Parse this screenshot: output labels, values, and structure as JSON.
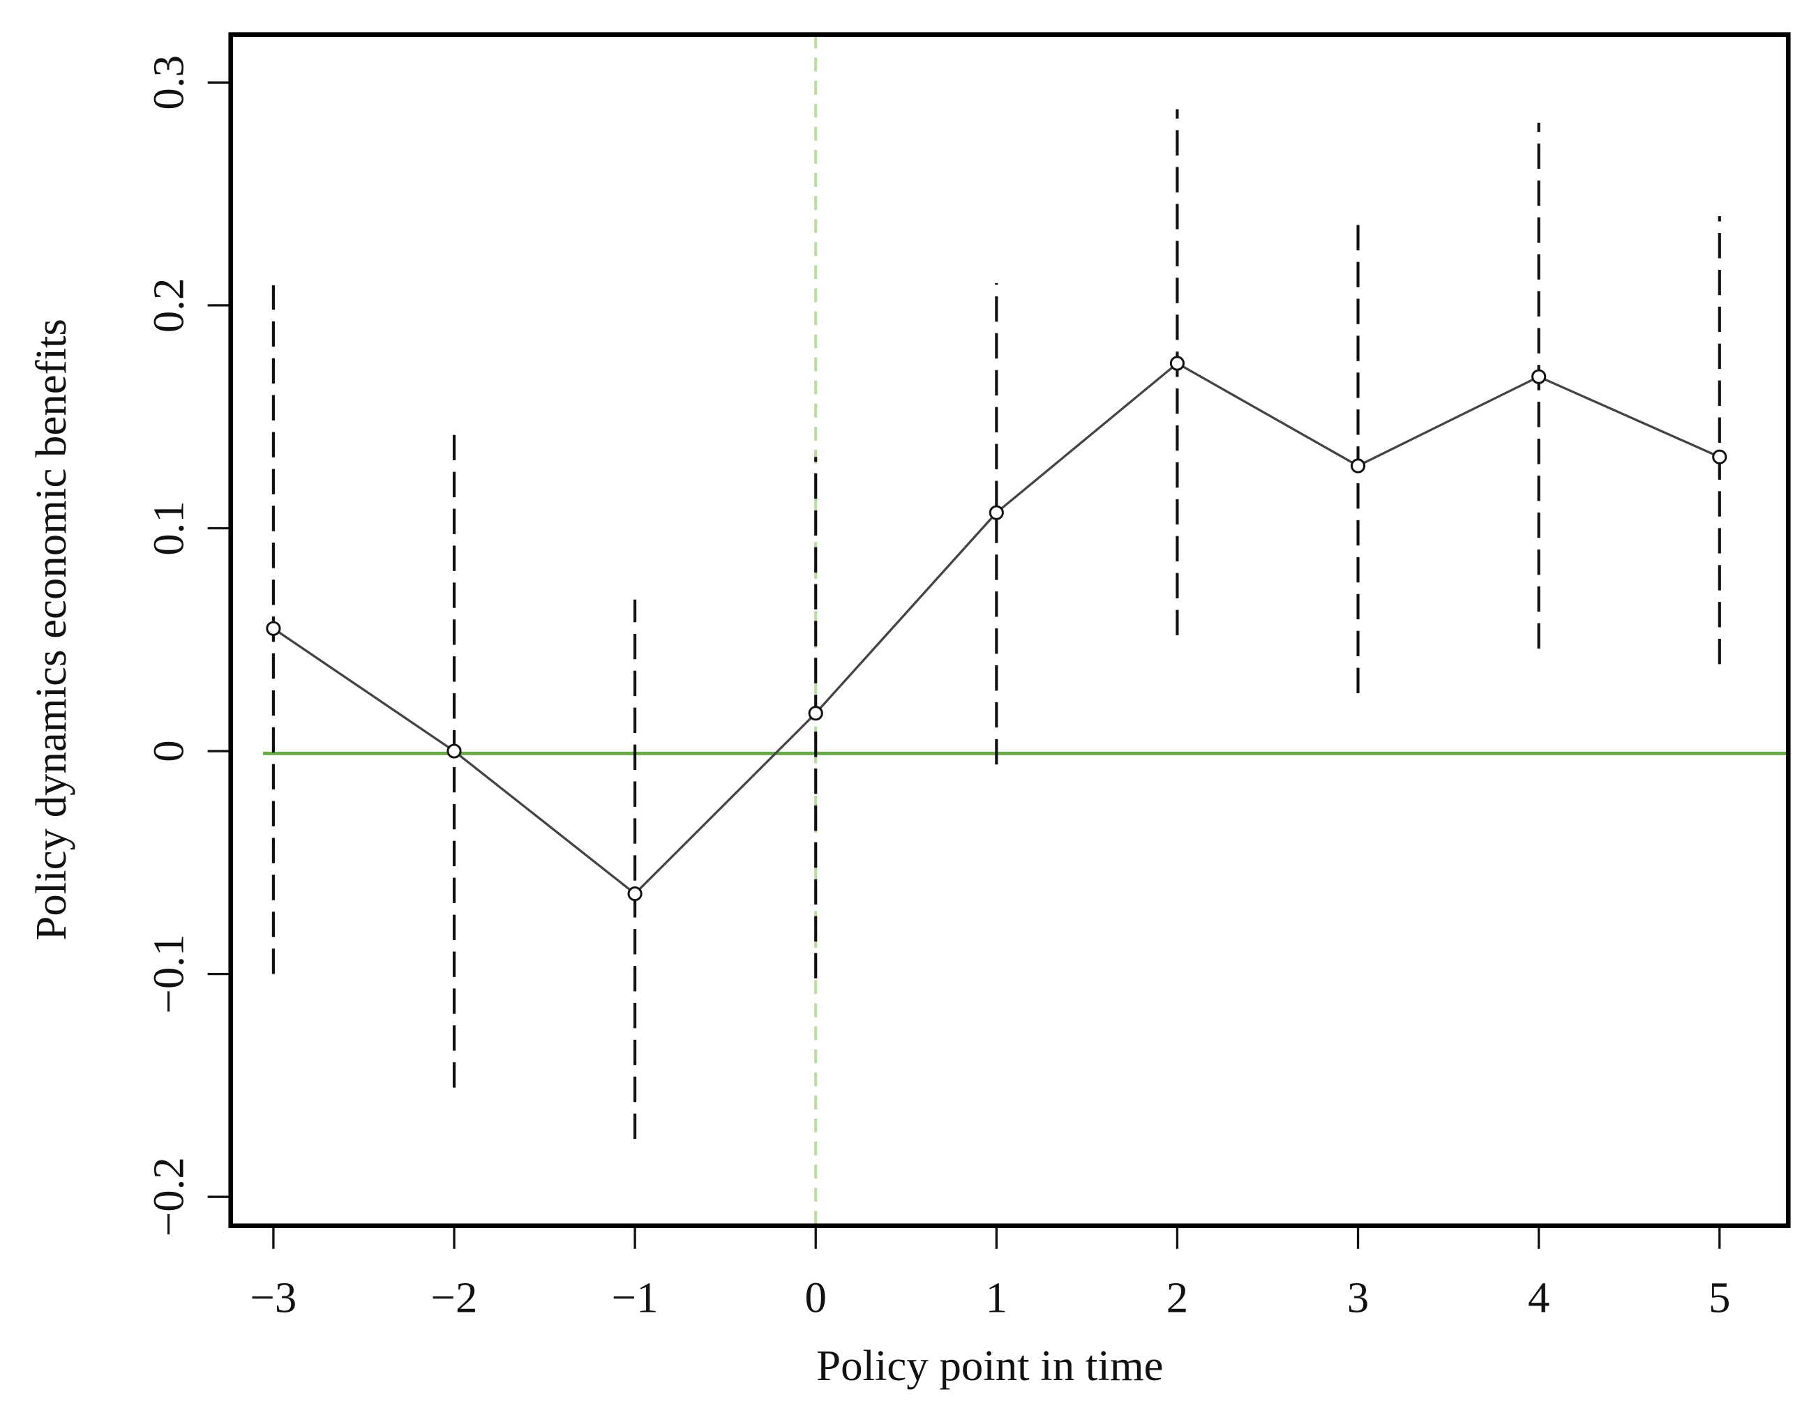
{
  "chart_data": {
    "type": "errorbar-line",
    "xlabel": "Policy point in time",
    "ylabel": "Policy dynamics economic benefits",
    "x": [
      -3,
      -2,
      -1,
      0,
      1,
      2,
      3,
      4,
      5
    ],
    "series": [
      {
        "color": "#444444",
        "values": [
          0.055,
          0,
          -0.064,
          0.017,
          0.107,
          0.174,
          0.128,
          0.168,
          0.132
        ],
        "lower": [
          -0.1,
          -0.151,
          -0.174,
          -0.102,
          -0.006,
          0.052,
          0.026,
          0.046,
          0.039
        ],
        "upper": [
          0.209,
          0.147,
          0.068,
          0.132,
          0.21,
          0.288,
          0.237,
          0.282,
          0.24
        ]
      }
    ],
    "xlim": [
      -3.236,
      5.38
    ],
    "ylim": [
      -0.213,
      0.3215
    ],
    "xticks": [
      {
        "value": -3,
        "label": "−3"
      },
      {
        "value": -2,
        "label": "−2"
      },
      {
        "value": -1,
        "label": "−1"
      },
      0,
      1,
      2,
      3,
      4,
      5
    ],
    "yticks": [
      {
        "value": -0.2,
        "label": "−0.2"
      },
      {
        "value": -0.1,
        "label": "−0.1"
      },
      0,
      0.1,
      0.2,
      0.3
    ],
    "hline": 0,
    "hline_color": "#6aaa4a",
    "vline": 0,
    "vline_color": "#b8dca0"
  }
}
